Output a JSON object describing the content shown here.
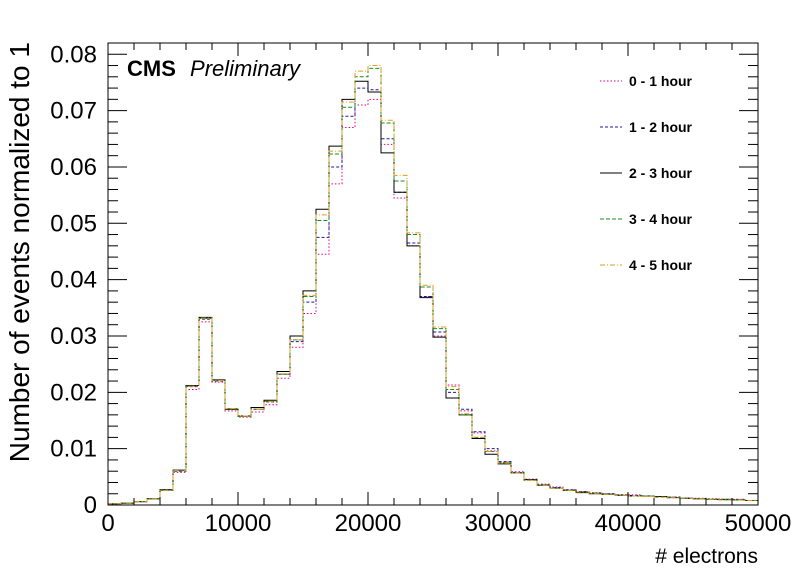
{
  "chart_data": {
    "type": "line",
    "title": "",
    "xlabel": "# electrons",
    "ylabel": "Number of events normalized to 1",
    "xlim": [
      0,
      50000
    ],
    "ylim": [
      0,
      0.082
    ],
    "xticks": [
      0,
      10000,
      20000,
      30000,
      40000,
      50000
    ],
    "xtick_labels": [
      "0",
      "10000",
      "20000",
      "30000",
      "40000",
      "50000"
    ],
    "yticks": [
      0,
      0.01,
      0.02,
      0.03,
      0.04,
      0.05,
      0.06,
      0.07,
      0.08
    ],
    "ytick_labels": [
      "0",
      "0.01",
      "0.02",
      "0.03",
      "0.04",
      "0.05",
      "0.06",
      "0.07",
      "0.08"
    ],
    "bin_width": 1000,
    "bin_edges_start": [
      0,
      1000,
      2000,
      3000,
      4000,
      5000,
      6000,
      7000,
      8000,
      9000,
      10000,
      11000,
      12000,
      13000,
      14000,
      15000,
      16000,
      17000,
      18000,
      19000,
      20000,
      21000,
      22000,
      23000,
      24000,
      25000,
      26000,
      27000,
      28000,
      29000,
      30000,
      31000,
      32000,
      33000,
      34000,
      35000,
      36000,
      37000,
      38000,
      39000,
      40000,
      41000,
      42000,
      43000,
      44000,
      45000,
      46000,
      47000,
      48000,
      49000
    ],
    "legend_position": "top-right",
    "annotation": {
      "bold": "CMS",
      "italic": "Preliminary"
    },
    "series": [
      {
        "name": "0 - 1 hour",
        "color": "#e6007e",
        "dash": "1.5,2",
        "values": [
          0.0002,
          0.0003,
          0.0006,
          0.0011,
          0.0026,
          0.0058,
          0.0205,
          0.0325,
          0.0218,
          0.0167,
          0.0156,
          0.0165,
          0.0178,
          0.0225,
          0.028,
          0.034,
          0.0445,
          0.057,
          0.067,
          0.071,
          0.072,
          0.064,
          0.0545,
          0.046,
          0.037,
          0.03,
          0.0213,
          0.0167,
          0.0128,
          0.0096,
          0.0076,
          0.0059,
          0.0046,
          0.0037,
          0.0032,
          0.0027,
          0.0024,
          0.0022,
          0.002,
          0.0018,
          0.0018,
          0.0016,
          0.0015,
          0.0014,
          0.0012,
          0.0012,
          0.0011,
          0.001,
          0.001,
          0.0008
        ]
      },
      {
        "name": "1 - 2 hour",
        "color": "#1a1aa6",
        "dash": "3,2",
        "values": [
          0.0002,
          0.0003,
          0.0006,
          0.0011,
          0.0027,
          0.006,
          0.021,
          0.033,
          0.022,
          0.017,
          0.0158,
          0.017,
          0.0183,
          0.0232,
          0.029,
          0.036,
          0.0475,
          0.06,
          0.069,
          0.074,
          0.0737,
          0.065,
          0.0555,
          0.0465,
          0.037,
          0.0307,
          0.02,
          0.017,
          0.013,
          0.01,
          0.0077,
          0.0058,
          0.0045,
          0.0036,
          0.0031,
          0.0027,
          0.0024,
          0.0021,
          0.002,
          0.0018,
          0.0017,
          0.0016,
          0.0015,
          0.0014,
          0.0012,
          0.0011,
          0.001,
          0.001,
          0.001,
          0.0008
        ]
      },
      {
        "name": "2 - 3 hour",
        "color": "#000000",
        "dash": "",
        "values": [
          0.0002,
          0.0003,
          0.0006,
          0.0011,
          0.0027,
          0.0062,
          0.0212,
          0.0333,
          0.0222,
          0.017,
          0.0158,
          0.0173,
          0.0186,
          0.0237,
          0.03,
          0.038,
          0.0525,
          0.0637,
          0.072,
          0.0752,
          0.0733,
          0.0625,
          0.0555,
          0.046,
          0.0368,
          0.0298,
          0.019,
          0.016,
          0.0118,
          0.009,
          0.0073,
          0.0057,
          0.0045,
          0.0035,
          0.003,
          0.0026,
          0.0022,
          0.002,
          0.0019,
          0.0017,
          0.0016,
          0.0016,
          0.0015,
          0.0013,
          0.0012,
          0.0011,
          0.001,
          0.001,
          0.0009,
          0.0008
        ]
      },
      {
        "name": "3 - 4 hour",
        "color": "#1a8c1a",
        "dash": "4,2",
        "values": [
          0.0002,
          0.0003,
          0.0006,
          0.0011,
          0.0026,
          0.0061,
          0.0211,
          0.0331,
          0.0221,
          0.0171,
          0.0157,
          0.017,
          0.0184,
          0.0232,
          0.0293,
          0.037,
          0.0505,
          0.0623,
          0.0706,
          0.076,
          0.0775,
          0.0678,
          0.0575,
          0.048,
          0.0387,
          0.0313,
          0.0205,
          0.016,
          0.012,
          0.0095,
          0.0075,
          0.0057,
          0.0044,
          0.0035,
          0.003,
          0.0026,
          0.0023,
          0.0021,
          0.0019,
          0.0017,
          0.0016,
          0.0016,
          0.0014,
          0.0013,
          0.0012,
          0.0011,
          0.001,
          0.0009,
          0.0009,
          0.0008
        ]
      },
      {
        "name": "4 - 5 hour",
        "color": "#e69a1a",
        "dash": "5,2,1,2",
        "values": [
          0.0002,
          0.0003,
          0.0006,
          0.0011,
          0.0026,
          0.0061,
          0.0211,
          0.0332,
          0.0221,
          0.0171,
          0.0158,
          0.017,
          0.0184,
          0.0233,
          0.0293,
          0.0372,
          0.0515,
          0.0628,
          0.0715,
          0.077,
          0.078,
          0.0683,
          0.0585,
          0.0483,
          0.039,
          0.0316,
          0.021,
          0.0162,
          0.012,
          0.0095,
          0.0074,
          0.0057,
          0.0044,
          0.0035,
          0.003,
          0.0026,
          0.0023,
          0.002,
          0.0019,
          0.0017,
          0.0016,
          0.0015,
          0.0014,
          0.0013,
          0.0012,
          0.0011,
          0.001,
          0.0009,
          0.0009,
          0.0008
        ]
      }
    ]
  }
}
